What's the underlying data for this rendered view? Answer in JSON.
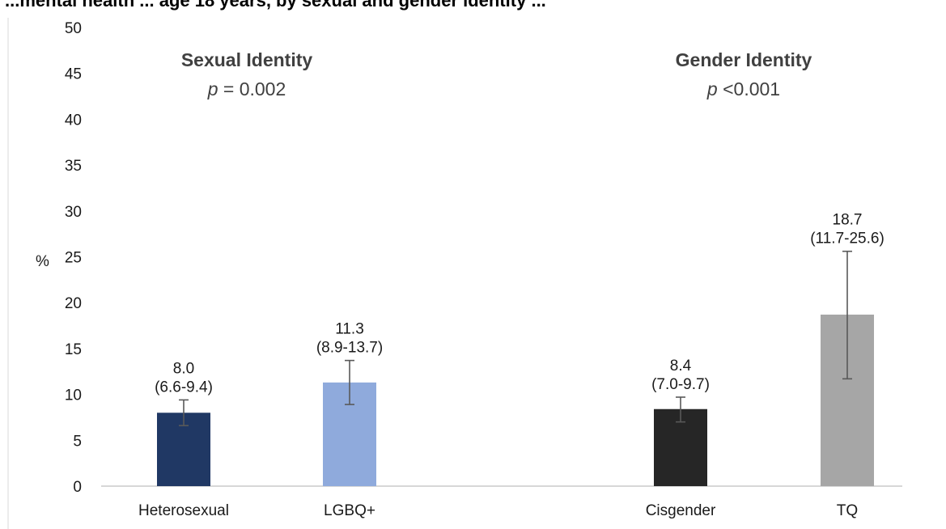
{
  "chart_data": {
    "type": "bar",
    "title": "...mental health ... age 18 years, by sexual and gender identity ...",
    "ylabel": "%",
    "ylim": [
      0,
      50
    ],
    "yticks": [
      0,
      5,
      10,
      15,
      20,
      25,
      30,
      35,
      40,
      45,
      50
    ],
    "grid": false,
    "legend": "none",
    "groups": [
      {
        "title": "Sexual Identity",
        "p_prefix": "p",
        "p_value": " = 0.002",
        "categories": [
          "Heterosexual",
          "LGBQ+"
        ],
        "values": [
          8.0,
          11.3
        ],
        "ci_low": [
          6.6,
          8.9
        ],
        "ci_high": [
          9.4,
          13.7
        ],
        "value_labels": [
          "8.0",
          "11.3"
        ],
        "ci_labels": [
          "(6.6-9.4)",
          "(8.9-13.7)"
        ],
        "colors": [
          "#203864",
          "#8faadc"
        ]
      },
      {
        "title": "Gender Identity",
        "p_prefix": "p",
        "p_value": " <0.001",
        "categories": [
          "Cisgender",
          "TQ"
        ],
        "values": [
          8.4,
          18.7
        ],
        "ci_low": [
          7.0,
          11.7
        ],
        "ci_high": [
          9.7,
          25.6
        ],
        "value_labels": [
          "8.4",
          "18.7"
        ],
        "ci_labels": [
          "(7.0-9.7)",
          "(11.7-25.6)"
        ],
        "colors": [
          "#262626",
          "#a6a6a6"
        ]
      }
    ],
    "errorbar_color": "#595959",
    "axis_color": "#bfbfbf"
  }
}
